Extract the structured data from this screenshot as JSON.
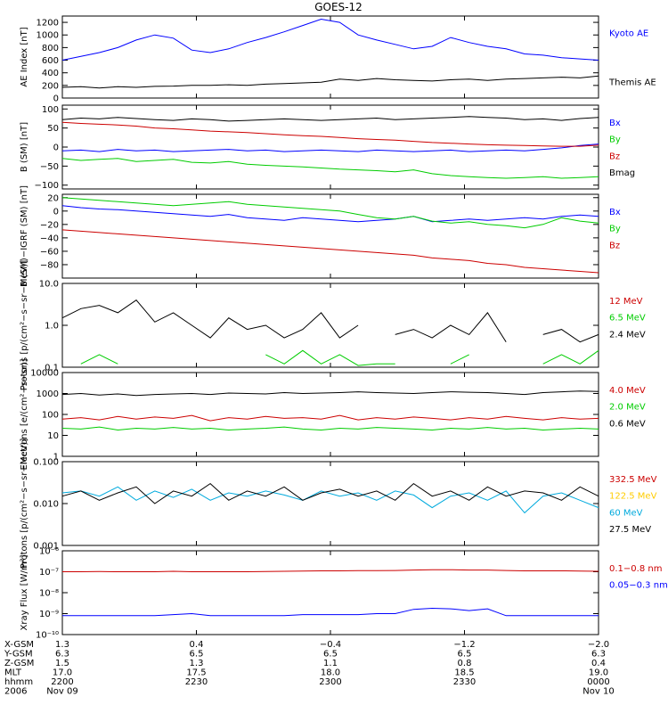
{
  "chart_data": {
    "title": "GOES-12",
    "type": "line",
    "x_ticks": [
      "2200",
      "2230",
      "2300",
      "2330",
      "0000"
    ],
    "panels": [
      {
        "id": "ae",
        "ylabel": "AE Index [nT]",
        "scale": "linear",
        "ylim": [
          0,
          1300
        ],
        "ytick_labels": [
          "0",
          "200",
          "400",
          "600",
          "800",
          "1000",
          "1200"
        ],
        "ytick_values": [
          0,
          200,
          400,
          600,
          800,
          1000,
          1200
        ],
        "series": [
          {
            "name": "Kyoto AE",
            "color": "#0000ff",
            "label_slot": 0,
            "values": [
              600,
              660,
              720,
              800,
              920,
              1000,
              950,
              760,
              720,
              780,
              880,
              960,
              1050,
              1150,
              1250,
              1200,
              1000,
              920,
              850,
              780,
              820,
              960,
              880,
              820,
              780,
              700,
              680,
              640,
              620,
              600
            ]
          },
          {
            "name": "Themis AE",
            "color": "#000000",
            "label_slot": 3,
            "values": [
              170,
              180,
              160,
              180,
              170,
              185,
              190,
              200,
              200,
              210,
              200,
              220,
              230,
              240,
              250,
              300,
              280,
              310,
              290,
              280,
              270,
              290,
              300,
              280,
              300,
              310,
              320,
              330,
              320,
              350
            ]
          }
        ]
      },
      {
        "id": "bsm",
        "ylabel": "B (SM) [nT]",
        "scale": "linear",
        "ylim": [
          -110,
          110
        ],
        "ytick_labels": [
          "−100",
          "−50",
          "0",
          "50",
          "100"
        ],
        "ytick_values": [
          -100,
          -50,
          0,
          50,
          100
        ],
        "series": [
          {
            "name": "Bx",
            "color": "#0000ff",
            "label_slot": 0,
            "values": [
              -10,
              -8,
              -12,
              -6,
              -10,
              -8,
              -12,
              -10,
              -8,
              -6,
              -10,
              -8,
              -12,
              -10,
              -8,
              -10,
              -12,
              -8,
              -10,
              -12,
              -10,
              -8,
              -12,
              -10,
              -8,
              -10,
              -6,
              -2,
              4,
              8
            ]
          },
          {
            "name": "By",
            "color": "#00cc00",
            "label_slot": 1,
            "values": [
              -30,
              -35,
              -32,
              -30,
              -38,
              -35,
              -32,
              -40,
              -42,
              -38,
              -45,
              -48,
              -50,
              -52,
              -55,
              -58,
              -60,
              -62,
              -65,
              -60,
              -70,
              -75,
              -78,
              -80,
              -82,
              -80,
              -78,
              -82,
              -80,
              -78
            ]
          },
          {
            "name": "Bz",
            "color": "#cc0000",
            "label_slot": 2,
            "values": [
              65,
              62,
              60,
              58,
              55,
              50,
              48,
              45,
              42,
              40,
              38,
              35,
              32,
              30,
              28,
              25,
              22,
              20,
              18,
              15,
              12,
              10,
              8,
              6,
              5,
              4,
              3,
              2,
              2,
              5
            ]
          },
          {
            "name": "Bmag",
            "color": "#000000",
            "label_slot": 3,
            "values": [
              72,
              76,
              74,
              78,
              75,
              72,
              70,
              74,
              72,
              68,
              70,
              72,
              74,
              72,
              70,
              72,
              74,
              76,
              72,
              74,
              76,
              78,
              80,
              78,
              76,
              72,
              74,
              70,
              75,
              78
            ]
          }
        ]
      },
      {
        "id": "bigrf",
        "ylabel": "B (SM)−IGRF (SM) [nT]",
        "scale": "linear",
        "ylim": [
          -100,
          25
        ],
        "ytick_labels": [
          "−80",
          "−60",
          "−40",
          "−20",
          "0",
          "20"
        ],
        "ytick_values": [
          -80,
          -60,
          -40,
          -20,
          0,
          20
        ],
        "series": [
          {
            "name": "Bx",
            "color": "#0000ff",
            "label_slot": 0,
            "values": [
              8,
              5,
              3,
              2,
              0,
              -2,
              -4,
              -6,
              -8,
              -5,
              -10,
              -12,
              -14,
              -10,
              -12,
              -14,
              -16,
              -14,
              -12,
              -8,
              -16,
              -14,
              -12,
              -14,
              -12,
              -10,
              -12,
              -8,
              -6,
              -8
            ]
          },
          {
            "name": "By",
            "color": "#00cc00",
            "label_slot": 1,
            "values": [
              20,
              18,
              16,
              14,
              12,
              10,
              8,
              10,
              12,
              14,
              10,
              8,
              6,
              4,
              2,
              0,
              -5,
              -10,
              -12,
              -8,
              -15,
              -18,
              -16,
              -20,
              -22,
              -25,
              -20,
              -10,
              -15,
              -18
            ]
          },
          {
            "name": "Bz",
            "color": "#cc0000",
            "label_slot": 2,
            "values": [
              -28,
              -30,
              -32,
              -34,
              -36,
              -38,
              -40,
              -42,
              -44,
              -46,
              -48,
              -50,
              -52,
              -54,
              -56,
              -58,
              -60,
              -62,
              -64,
              -66,
              -70,
              -72,
              -74,
              -78,
              -80,
              -84,
              -86,
              -88,
              -90,
              -92
            ]
          }
        ]
      },
      {
        "id": "protons_low",
        "ylabel": "Protons [p/(cm²−s−sr−MeV)]",
        "scale": "log",
        "ylim": [
          0.1,
          10
        ],
        "ytick_labels": [
          "0.1",
          "1.0",
          "10.0"
        ],
        "ytick_values": [
          0.1,
          1,
          10
        ],
        "series": [
          {
            "name": "12 MeV",
            "color": "#cc0000",
            "label_slot": 0,
            "values": [
              null,
              null,
              null,
              null,
              null,
              null,
              null,
              null,
              null,
              null,
              0.11,
              null,
              null,
              null,
              null,
              null,
              null,
              null,
              null,
              null,
              null,
              0.12,
              null,
              null,
              null,
              null,
              null,
              null,
              0.12,
              null
            ]
          },
          {
            "name": "6.5 MeV",
            "color": "#00cc00",
            "label_slot": 1,
            "values": [
              null,
              0.12,
              0.2,
              0.12,
              null,
              0.11,
              null,
              null,
              null,
              null,
              null,
              0.2,
              0.12,
              0.25,
              0.12,
              0.2,
              0.11,
              0.12,
              0.12,
              null,
              null,
              0.12,
              0.2,
              null,
              null,
              null,
              0.12,
              0.2,
              0.12,
              0.25
            ]
          },
          {
            "name": "2.4 MeV",
            "color": "#000000",
            "label_slot": 2,
            "values": [
              1.5,
              2.5,
              3.0,
              2.0,
              4.0,
              1.2,
              2.0,
              1.0,
              0.5,
              1.5,
              0.8,
              1.0,
              0.5,
              0.8,
              2.0,
              0.5,
              1.0,
              null,
              0.6,
              0.8,
              0.5,
              1.0,
              0.6,
              2.0,
              0.4,
              null,
              0.6,
              0.8,
              0.4,
              0.6
            ]
          }
        ]
      },
      {
        "id": "electrons",
        "ylabel": "Electrons [e/(cm²−s−sr)]",
        "scale": "log",
        "ylim": [
          1,
          10000
        ],
        "ytick_labels": [
          "1",
          "10",
          "100",
          "1000",
          "10000"
        ],
        "ytick_values": [
          1,
          10,
          100,
          1000,
          10000
        ],
        "series": [
          {
            "name": "4.0 MeV",
            "color": "#cc0000",
            "label_slot": 0,
            "values": [
              60,
              70,
              55,
              80,
              60,
              75,
              65,
              90,
              50,
              70,
              60,
              80,
              65,
              70,
              60,
              90,
              55,
              70,
              60,
              75,
              65,
              55,
              70,
              60,
              80,
              65,
              55,
              70,
              60,
              65
            ]
          },
          {
            "name": "2.0 MeV",
            "color": "#00cc00",
            "label_slot": 1,
            "values": [
              22,
              20,
              25,
              18,
              22,
              20,
              24,
              20,
              22,
              18,
              20,
              22,
              25,
              20,
              18,
              22,
              20,
              24,
              22,
              20,
              18,
              22,
              20,
              24,
              20,
              22,
              18,
              20,
              22,
              20
            ]
          },
          {
            "name": "0.6 MeV",
            "color": "#000000",
            "label_slot": 2,
            "values": [
              900,
              1000,
              850,
              950,
              800,
              900,
              950,
              1000,
              900,
              1050,
              1000,
              950,
              1100,
              1000,
              1050,
              1100,
              1200,
              1100,
              1050,
              1000,
              1100,
              1200,
              1150,
              1100,
              1000,
              900,
              1100,
              1200,
              1300,
              1250
            ]
          }
        ]
      },
      {
        "id": "protons_high",
        "ylabel": "Protons [p/(cm²−s−sr−MeV)]",
        "scale": "log",
        "ylim": [
          0.001,
          0.1
        ],
        "ytick_labels": [
          "0.001",
          "0.010",
          "0.100"
        ],
        "ytick_values": [
          0.001,
          0.01,
          0.1
        ],
        "series": [
          {
            "name": "332.5 MeV",
            "color": "#cc0000",
            "label_slot": 0,
            "values": []
          },
          {
            "name": "122.5 MeV",
            "color": "#ffcc00",
            "label_slot": 1,
            "values": []
          },
          {
            "name": "60 MeV",
            "color": "#00aadd",
            "label_slot": 2,
            "values": [
              0.018,
              0.02,
              0.015,
              0.025,
              0.012,
              0.02,
              0.014,
              0.022,
              0.012,
              0.018,
              0.015,
              0.02,
              0.016,
              0.012,
              0.02,
              0.015,
              0.018,
              0.012,
              0.02,
              0.016,
              0.008,
              0.015,
              0.018,
              0.012,
              0.02,
              0.006,
              0.015,
              0.018,
              0.012,
              0.008
            ]
          },
          {
            "name": "27.5 MeV",
            "color": "#000000",
            "label_slot": 3,
            "values": [
              0.015,
              0.02,
              0.012,
              0.018,
              0.025,
              0.01,
              0.02,
              0.015,
              0.03,
              0.012,
              0.02,
              0.015,
              0.025,
              0.012,
              0.018,
              0.022,
              0.015,
              0.02,
              0.012,
              0.03,
              0.015,
              0.02,
              0.012,
              0.025,
              0.015,
              0.02,
              0.018,
              0.012,
              0.025,
              0.015
            ]
          }
        ]
      },
      {
        "id": "xray",
        "ylabel": "Xray Flux [W/m²]",
        "scale": "log",
        "ylim": [
          1e-10,
          1e-06
        ],
        "ytick_labels": [
          "10⁻¹⁰",
          "10⁻⁹",
          "10⁻⁸",
          "10⁻⁷",
          "10⁻⁶"
        ],
        "ytick_values": [
          1e-10,
          1e-09,
          1e-08,
          1e-07,
          1e-06
        ],
        "series": [
          {
            "name": "0.1−0.8 nm",
            "color": "#cc0000",
            "label_slot": 0,
            "values": [
              1e-07,
              1e-07,
              1.02e-07,
              1e-07,
              1e-07,
              1e-07,
              1.05e-07,
              1e-07,
              1e-07,
              1e-07,
              1e-07,
              1.02e-07,
              1.05e-07,
              1.08e-07,
              1.1e-07,
              1.1e-07,
              1.12e-07,
              1.12e-07,
              1.15e-07,
              1.2e-07,
              1.25e-07,
              1.25e-07,
              1.2e-07,
              1.2e-07,
              1.15e-07,
              1.1e-07,
              1.1e-07,
              1.1e-07,
              1.08e-07,
              1.05e-07
            ]
          },
          {
            "name": "0.05−0.3 nm",
            "color": "#0000ff",
            "label_slot": 1,
            "values": [
              8e-10,
              8e-10,
              8e-10,
              8e-10,
              8e-10,
              8e-10,
              9e-10,
              1e-09,
              8e-10,
              8e-10,
              8e-10,
              8e-10,
              8e-10,
              9e-10,
              9e-10,
              9e-10,
              9e-10,
              1e-09,
              1e-09,
              1.6e-09,
              1.8e-09,
              1.7e-09,
              1.4e-09,
              1.7e-09,
              8e-10,
              8e-10,
              8e-10,
              8e-10,
              8e-10,
              8e-10
            ]
          }
        ]
      }
    ],
    "ephemeris": {
      "row_labels": [
        "X-GSM",
        "Y-GSM",
        "Z-GSM",
        "MLT",
        "hhmm",
        "2006"
      ],
      "columns": [
        [
          "1.3",
          "6.3",
          "1.5",
          "17.0",
          "2200",
          "Nov 09"
        ],
        [
          "0.4",
          "6.5",
          "1.3",
          "17.5",
          "2230",
          ""
        ],
        [
          "−0.4",
          "6.5",
          "1.1",
          "18.0",
          "2300",
          ""
        ],
        [
          "−1.2",
          "6.5",
          "0.8",
          "18.5",
          "2330",
          ""
        ],
        [
          "−2.0",
          "6.3",
          "0.4",
          "19.0",
          "0000",
          "Nov 10"
        ]
      ]
    }
  }
}
